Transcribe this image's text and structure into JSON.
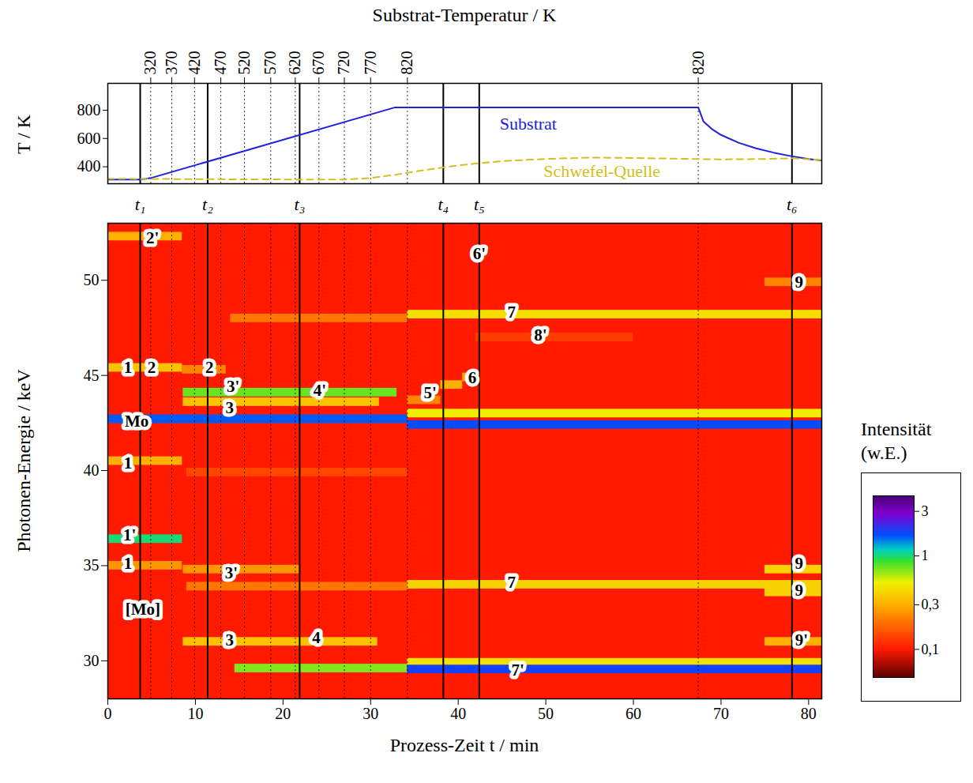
{
  "chart_data": [
    {
      "type": "line",
      "x2label": "Substrat-Temperatur / K",
      "ylabel": "T / K",
      "xlim": [
        0,
        81.5
      ],
      "ylim": [
        280,
        990
      ],
      "yticks": [
        400,
        600,
        800
      ],
      "x2ticks": [
        {
          "value": 4.9,
          "label": "320"
        },
        {
          "value": 7.3,
          "label": "370"
        },
        {
          "value": 9.9,
          "label": "420"
        },
        {
          "value": 12.9,
          "label": "470"
        },
        {
          "value": 15.6,
          "label": "520"
        },
        {
          "value": 18.6,
          "label": "570"
        },
        {
          "value": 21.4,
          "label": "620"
        },
        {
          "value": 24.1,
          "label": "670"
        },
        {
          "value": 27.0,
          "label": "720"
        },
        {
          "value": 30.0,
          "label": "770"
        },
        {
          "value": 34.2,
          "label": "820"
        },
        {
          "value": 67.4,
          "label": "820"
        }
      ],
      "markers": [
        {
          "label": "t₁",
          "value": 3.7
        },
        {
          "label": "t₂",
          "value": 11.4
        },
        {
          "label": "t₃",
          "value": 21.9
        },
        {
          "label": "t₄",
          "value": 38.3
        },
        {
          "label": "t₅",
          "value": 42.4
        },
        {
          "label": "t₆",
          "value": 78.1
        }
      ],
      "series": [
        {
          "name": "Substrat",
          "color": "#2020e0",
          "line_style": "solid",
          "label_at": [
            48,
            700
          ],
          "x": [
            0,
            3.5,
            4.2,
            4.9,
            32.8,
            67.4,
            68,
            69,
            70,
            72,
            74,
            76,
            78,
            80,
            81.5
          ],
          "values": [
            310,
            310,
            313,
            320,
            820,
            820,
            720,
            665,
            625,
            570,
            530,
            500,
            475,
            455,
            445
          ]
        },
        {
          "name": "Schwefel-Quelle",
          "color": "#d0c020",
          "line_style": "dashed",
          "label_at": [
            56.4,
            367
          ],
          "x": [
            0,
            10,
            20,
            27,
            30,
            33,
            36,
            40,
            45,
            50,
            55,
            60,
            65,
            70,
            75,
            78,
            81.5
          ],
          "values": [
            315,
            312,
            310,
            310,
            320,
            345,
            375,
            410,
            440,
            455,
            465,
            462,
            457,
            452,
            455,
            460,
            448
          ]
        }
      ]
    },
    {
      "type": "heatmap",
      "xlabel": "Prozess-Zeit t / min",
      "ylabel": "Photonen-Energie / keV",
      "xlim": [
        0,
        81.5
      ],
      "ylim": [
        28,
        53
      ],
      "xticks": [
        0,
        10,
        20,
        30,
        40,
        50,
        60,
        70,
        80
      ],
      "yticks": [
        30,
        35,
        40,
        45,
        50
      ],
      "background": 0.1,
      "bands": [
        {
          "energy": 39.9,
          "start": 9,
          "end": 34.2,
          "intensity": 0.14
        },
        {
          "energy": 47.0,
          "start": 42,
          "end": 60,
          "intensity": 0.13
        },
        {
          "energy": 48.0,
          "start": 14,
          "end": 34.2,
          "intensity": 0.2
        },
        {
          "energy": 33.9,
          "start": 9,
          "end": 34.2,
          "intensity": 0.2
        },
        {
          "energy": 45.3,
          "start": 8.5,
          "end": 13.5,
          "intensity": 0.22
        },
        {
          "energy": 52.3,
          "start": 0,
          "end": 8.5,
          "intensity": 0.3
        },
        {
          "energy": 45.4,
          "start": 0,
          "end": 8.5,
          "intensity": 0.35
        },
        {
          "energy": 40.5,
          "start": 0,
          "end": 8.5,
          "intensity": 0.3
        },
        {
          "energy": 35.0,
          "start": 0,
          "end": 8.5,
          "intensity": 0.25
        },
        {
          "energy": 34.8,
          "start": 8.6,
          "end": 22,
          "intensity": 0.25
        },
        {
          "energy": 31.0,
          "start": 8.6,
          "end": 30.8,
          "intensity": 0.35
        },
        {
          "energy": 43.6,
          "start": 8.6,
          "end": 31,
          "intensity": 0.35
        },
        {
          "energy": 43.7,
          "start": 34.2,
          "end": 38,
          "intensity": 0.22
        },
        {
          "energy": 44.5,
          "start": 38,
          "end": 40.5,
          "intensity": 0.3
        },
        {
          "energy": 44.9,
          "start": 40.5,
          "end": 42.5,
          "intensity": 0.28
        },
        {
          "energy": 48.2,
          "start": 34.2,
          "end": 81.5,
          "intensity": 0.45
        },
        {
          "energy": 34.0,
          "start": 34.2,
          "end": 81.5,
          "intensity": 0.4
        },
        {
          "energy": 29.9,
          "start": 34.2,
          "end": 81.5,
          "intensity": 0.45
        },
        {
          "energy": 43.0,
          "start": 34.2,
          "end": 81.5,
          "intensity": 0.5
        },
        {
          "energy": 49.9,
          "start": 75,
          "end": 81.5,
          "intensity": 0.22
        },
        {
          "energy": 34.8,
          "start": 75,
          "end": 81.5,
          "intensity": 0.4
        },
        {
          "energy": 33.6,
          "start": 75,
          "end": 81.5,
          "intensity": 0.4
        },
        {
          "energy": 31.0,
          "start": 75,
          "end": 81.5,
          "intensity": 0.3
        },
        {
          "energy": 29.6,
          "start": 14.5,
          "end": 34.2,
          "intensity": 0.7
        },
        {
          "energy": 44.1,
          "start": 8.6,
          "end": 33,
          "intensity": 0.75
        },
        {
          "energy": 36.4,
          "start": 0,
          "end": 8.5,
          "intensity": 1.0
        },
        {
          "energy": 42.7,
          "start": 0,
          "end": 34.2,
          "intensity": 1.6
        },
        {
          "energy": 42.4,
          "start": 34.2,
          "end": 81.5,
          "intensity": 1.7
        },
        {
          "energy": 29.55,
          "start": 34.2,
          "end": 81.5,
          "intensity": 1.8
        }
      ],
      "annotations": [
        {
          "text": "2'",
          "x": 5.1,
          "y": 52.2
        },
        {
          "text": "1",
          "x": 2.3,
          "y": 45.4
        },
        {
          "text": "2",
          "x": 5.0,
          "y": 45.4
        },
        {
          "text": "2",
          "x": 11.6,
          "y": 45.4
        },
        {
          "text": "3'",
          "x": 14.3,
          "y": 44.4
        },
        {
          "text": "3",
          "x": 13.9,
          "y": 43.3
        },
        {
          "text": "4'",
          "x": 24.2,
          "y": 44.2
        },
        {
          "text": "5'",
          "x": 36.8,
          "y": 44.1
        },
        {
          "text": "6",
          "x": 41.6,
          "y": 44.85
        },
        {
          "text": "6'",
          "x": 42.4,
          "y": 51.4
        },
        {
          "text": "7",
          "x": 46.1,
          "y": 48.3
        },
        {
          "text": "8'",
          "x": 49.4,
          "y": 47.1
        },
        {
          "text": "9",
          "x": 78.9,
          "y": 49.9
        },
        {
          "text": "Mo",
          "x": 3.3,
          "y": 42.6
        },
        {
          "text": "1",
          "x": 2.3,
          "y": 40.4
        },
        {
          "text": "1'",
          "x": 2.5,
          "y": 36.6
        },
        {
          "text": "1",
          "x": 2.3,
          "y": 35.1
        },
        {
          "text": "3'",
          "x": 14.1,
          "y": 34.6
        },
        {
          "text": "7",
          "x": 46.1,
          "y": 34.1
        },
        {
          "text": "9",
          "x": 78.9,
          "y": 35.1
        },
        {
          "text": "9",
          "x": 78.9,
          "y": 33.7
        },
        {
          "text": "[Mo]",
          "x": 4.0,
          "y": 32.7
        },
        {
          "text": "3",
          "x": 13.9,
          "y": 31.1
        },
        {
          "text": "4",
          "x": 23.8,
          "y": 31.2
        },
        {
          "text": "9'",
          "x": 79.2,
          "y": 31.1
        },
        {
          "text": "7'",
          "x": 46.8,
          "y": 29.5
        }
      ],
      "colorbar": {
        "label": "Intensität (w.E.)",
        "log": true,
        "range": [
          0.05,
          4.4
        ],
        "ticks": [
          {
            "value": 0.1,
            "label": "0,1"
          },
          {
            "value": 0.3,
            "label": "0,3"
          },
          1,
          3
        ]
      }
    }
  ]
}
